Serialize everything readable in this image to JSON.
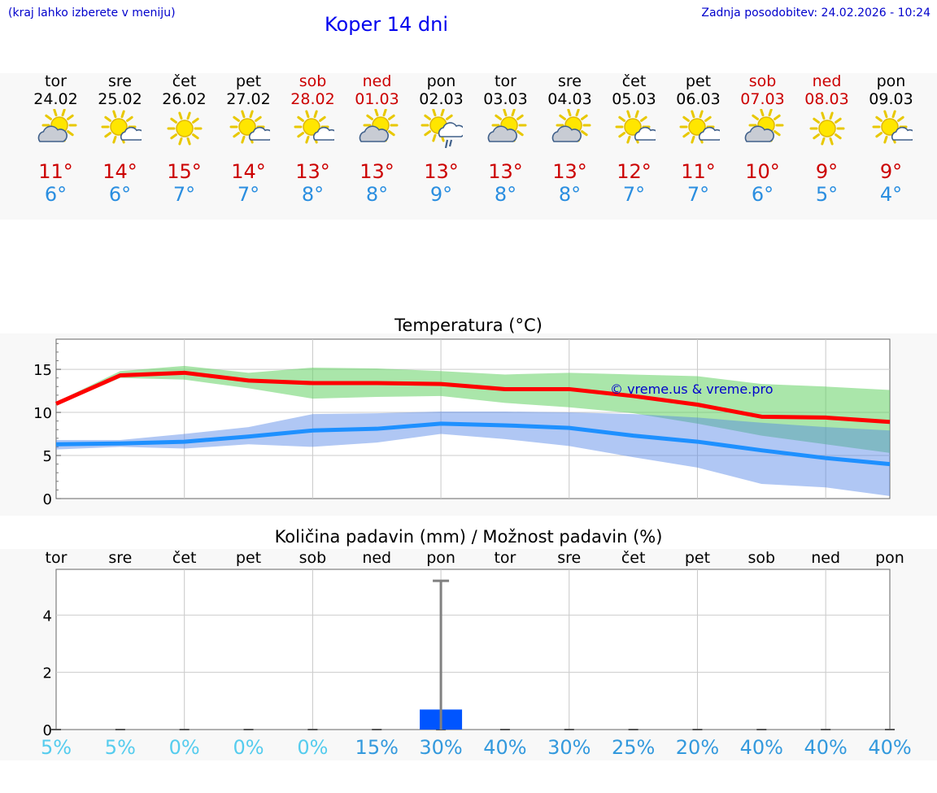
{
  "header": {
    "hint": "(kraj lahko izberete v meniju)",
    "title": "Koper 14 dni",
    "updated": "Zadnja posodobitev: 24.02.2026 - 10:24"
  },
  "days": [
    {
      "name": "tor",
      "date": "24.02",
      "weekend": false,
      "icon": "partly-cloudy-icon",
      "max": "11°",
      "min": "6°"
    },
    {
      "name": "sre",
      "date": "25.02",
      "weekend": false,
      "icon": "sun-cloud-icon",
      "max": "14°",
      "min": "6°"
    },
    {
      "name": "čet",
      "date": "26.02",
      "weekend": false,
      "icon": "sunny-icon",
      "max": "15°",
      "min": "7°"
    },
    {
      "name": "pet",
      "date": "27.02",
      "weekend": false,
      "icon": "sun-cloud-icon",
      "max": "14°",
      "min": "7°"
    },
    {
      "name": "sob",
      "date": "28.02",
      "weekend": true,
      "icon": "sun-cloud-icon",
      "max": "13°",
      "min": "8°"
    },
    {
      "name": "ned",
      "date": "01.03",
      "weekend": true,
      "icon": "partly-cloudy-icon",
      "max": "13°",
      "min": "8°"
    },
    {
      "name": "pon",
      "date": "02.03",
      "weekend": false,
      "icon": "sun-rain-icon",
      "max": "13°",
      "min": "9°"
    },
    {
      "name": "tor",
      "date": "03.03",
      "weekend": false,
      "icon": "partly-cloudy-icon",
      "max": "13°",
      "min": "8°"
    },
    {
      "name": "sre",
      "date": "04.03",
      "weekend": false,
      "icon": "partly-cloudy-icon",
      "max": "13°",
      "min": "8°"
    },
    {
      "name": "čet",
      "date": "05.03",
      "weekend": false,
      "icon": "sun-cloud-icon",
      "max": "12°",
      "min": "7°"
    },
    {
      "name": "pet",
      "date": "06.03",
      "weekend": false,
      "icon": "sun-cloud-icon",
      "max": "11°",
      "min": "7°"
    },
    {
      "name": "sob",
      "date": "07.03",
      "weekend": true,
      "icon": "partly-cloudy-icon",
      "max": "10°",
      "min": "6°"
    },
    {
      "name": "ned",
      "date": "08.03",
      "weekend": true,
      "icon": "sunny-icon",
      "max": "9°",
      "min": "5°"
    },
    {
      "name": "pon",
      "date": "09.03",
      "weekend": false,
      "icon": "sun-cloud-icon",
      "max": "9°",
      "min": "4°"
    }
  ],
  "chart_data": [
    {
      "type": "line",
      "title": "Temperatura (°C)",
      "watermark": "© vreme.us & vreme.pro",
      "ylim": [
        0,
        18.5
      ],
      "yticks": [
        "0",
        "5",
        "10",
        "15"
      ],
      "categories": [
        "tor",
        "sre",
        "čet",
        "pet",
        "sob",
        "ned",
        "pon",
        "tor",
        "sre",
        "čet",
        "pet",
        "sob",
        "ned",
        "pon"
      ],
      "series": [
        {
          "name": "max",
          "color": "#ff0000",
          "values": [
            11,
            14.3,
            14.6,
            13.7,
            13.4,
            13.4,
            13.3,
            12.7,
            12.7,
            11.9,
            10.9,
            9.5,
            9.4,
            8.9
          ]
        },
        {
          "name": "max-range-low",
          "values": [
            10.8,
            14.0,
            13.8,
            12.8,
            11.6,
            11.8,
            11.9,
            11.1,
            10.6,
            9.9,
            8.7,
            7.3,
            6.3,
            5.3
          ]
        },
        {
          "name": "max-range-high",
          "values": [
            11.2,
            14.8,
            15.4,
            14.6,
            15.2,
            15.1,
            14.8,
            14.4,
            14.6,
            14.4,
            14.2,
            13.3,
            13.0,
            12.6
          ]
        },
        {
          "name": "min",
          "color": "#1e90ff",
          "values": [
            6.3,
            6.4,
            6.6,
            7.2,
            7.9,
            8.1,
            8.7,
            8.5,
            8.2,
            7.3,
            6.6,
            5.6,
            4.7,
            4.0
          ]
        },
        {
          "name": "min-range-low",
          "values": [
            5.7,
            6.0,
            5.8,
            6.3,
            6.0,
            6.5,
            7.5,
            6.9,
            6.1,
            4.8,
            3.6,
            1.7,
            1.3,
            0.3
          ]
        },
        {
          "name": "min-range-high",
          "values": [
            6.8,
            6.8,
            7.5,
            8.3,
            9.8,
            9.9,
            10.1,
            10.1,
            10.0,
            9.8,
            9.4,
            8.8,
            8.3,
            7.9
          ]
        }
      ]
    },
    {
      "type": "bar",
      "title": "Količina padavin (mm) / Možnost padavin (%)",
      "ylim": [
        0,
        5.6
      ],
      "yticks": [
        "0",
        "2",
        "4"
      ],
      "categories": [
        "tor",
        "sre",
        "čet",
        "pet",
        "sob",
        "ned",
        "pon",
        "tor",
        "sre",
        "čet",
        "pet",
        "sob",
        "ned",
        "pon"
      ],
      "values": [
        0,
        0,
        0,
        0,
        0,
        0,
        0.7,
        0,
        0,
        0,
        0,
        0,
        0,
        0
      ],
      "error_high": [
        0,
        0,
        0,
        0,
        0,
        0,
        5.2,
        0,
        0,
        0,
        0,
        0,
        0,
        0
      ],
      "bar_color": "#0055ff",
      "probability": [
        "5%",
        "5%",
        "0%",
        "0%",
        "0%",
        "15%",
        "30%",
        "40%",
        "30%",
        "25%",
        "20%",
        "40%",
        "40%",
        "40%"
      ]
    }
  ]
}
